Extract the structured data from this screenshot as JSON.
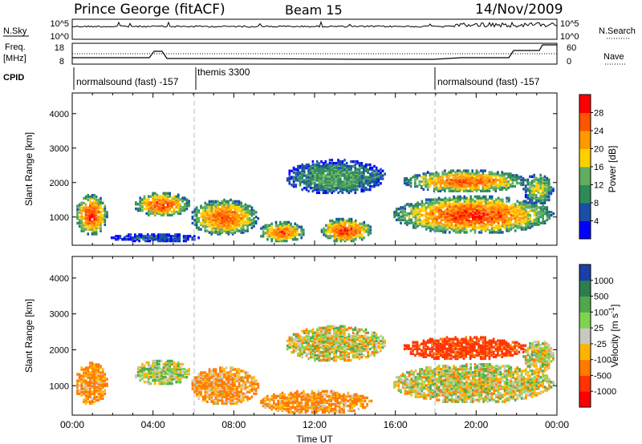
{
  "header": {
    "station": "Prince George (fitACF)",
    "beam": "Beam 15",
    "date": "14/Nov/2009"
  },
  "panels": {
    "nsky": {
      "left_label": "N.Sky",
      "right_label": "N.Search",
      "left_ticks": [
        "10^5",
        "10^0"
      ],
      "right_ticks": [
        "10^5",
        "10^0"
      ]
    },
    "freq": {
      "left_label_1": "Freq.",
      "left_label_2": "[MHz]",
      "right_label": "Nave",
      "left_ticks": [
        "18",
        "8"
      ],
      "right_ticks": [
        "60",
        "0"
      ]
    },
    "cpid": {
      "label": "CPID",
      "segments": [
        "normalsound (fast) -157",
        "themis 3300",
        "normalsound (fast) -157"
      ]
    }
  },
  "colors": {
    "power_scale": [
      "#0000ff",
      "#1a4fa8",
      "#2e8b57",
      "#5fae5f",
      "#ffd000",
      "#ff9900",
      "#ff5500",
      "#ff0000"
    ],
    "velocity_scale": [
      "#1a3fa8",
      "#2e7d4f",
      "#4fa84f",
      "#7fd34f",
      "#c8c8c0",
      "#ffb400",
      "#ff7a00",
      "#ff3300",
      "#ff0000"
    ]
  },
  "chart_data": [
    {
      "type": "heatmap",
      "title": "Power",
      "xlabel": "",
      "ylabel": "Slant Range [km]",
      "xlim": [
        "00:00",
        "24:00"
      ],
      "ylim": [
        180,
        4600
      ],
      "y_ticks": [
        "1000",
        "2000",
        "3000",
        "4000"
      ],
      "colorbar": {
        "label": "Power [dB]",
        "ticks": [
          "4",
          "8",
          "12",
          "16",
          "20",
          "24",
          "28"
        ],
        "range": [
          0,
          30
        ]
      },
      "blobs": [
        {
          "t": [
            0.1,
            1.7
          ],
          "r": [
            500,
            1700
          ],
          "peak": 26
        },
        {
          "t": [
            1.8,
            6.4
          ],
          "r": [
            300,
            550
          ],
          "peak": 6
        },
        {
          "t": [
            3.0,
            5.8
          ],
          "r": [
            1050,
            1750
          ],
          "peak": 25
        },
        {
          "t": [
            5.8,
            9.2
          ],
          "r": [
            500,
            1550
          ],
          "peak": 24
        },
        {
          "t": [
            9.2,
            11.5
          ],
          "r": [
            300,
            900
          ],
          "peak": 24
        },
        {
          "t": [
            12.2,
            14.8
          ],
          "r": [
            300,
            1000
          ],
          "peak": 26
        },
        {
          "t": [
            15.8,
            23.8
          ],
          "r": [
            550,
            1650
          ],
          "peak": 26
        },
        {
          "t": [
            16.3,
            22.5
          ],
          "r": [
            1750,
            2400
          ],
          "peak": 24
        },
        {
          "t": [
            10.5,
            15.5
          ],
          "r": [
            1700,
            2700
          ],
          "peak": 12
        },
        {
          "t": [
            22.3,
            23.8
          ],
          "r": [
            1400,
            2300
          ],
          "peak": 16
        }
      ]
    },
    {
      "type": "heatmap",
      "title": "Velocity",
      "xlabel": "Time UT",
      "ylabel": "Slant Range [km]",
      "xlim": [
        "00:00",
        "24:00"
      ],
      "ylim": [
        180,
        4600
      ],
      "x_ticks": [
        "00:00",
        "04:00",
        "08:00",
        "12:00",
        "16:00",
        "20:00",
        "00:00"
      ],
      "y_ticks": [
        "1000",
        "2000",
        "3000",
        "4000"
      ],
      "colorbar": {
        "label": "Velocity [m s^-1]",
        "ticks": [
          "1000",
          "500",
          "100",
          "25",
          "-25",
          "-100",
          "-500",
          "-1000"
        ],
        "range": [
          -1200,
          1200
        ]
      },
      "blobs": [
        {
          "t": [
            0.1,
            1.7
          ],
          "r": [
            500,
            1700
          ],
          "vel": -150
        },
        {
          "t": [
            3.0,
            5.8
          ],
          "r": [
            1050,
            1750
          ],
          "vel": 60
        },
        {
          "t": [
            5.8,
            9.2
          ],
          "r": [
            500,
            1550
          ],
          "vel": -120
        },
        {
          "t": [
            9.2,
            14.8
          ],
          "r": [
            250,
            900
          ],
          "vel": -150
        },
        {
          "t": [
            15.8,
            23.8
          ],
          "r": [
            550,
            1650
          ],
          "vel": 0
        },
        {
          "t": [
            16.3,
            22.5
          ],
          "r": [
            1750,
            2400
          ],
          "vel": -600
        },
        {
          "t": [
            10.5,
            15.5
          ],
          "r": [
            1700,
            2700
          ],
          "vel": 0
        },
        {
          "t": [
            22.3,
            23.8
          ],
          "r": [
            1400,
            2300
          ],
          "vel": 0
        }
      ]
    }
  ]
}
